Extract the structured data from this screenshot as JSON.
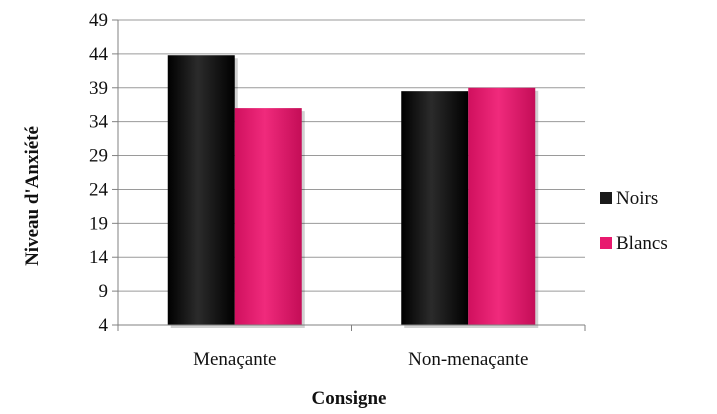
{
  "chart_data": {
    "type": "bar",
    "title": "",
    "xlabel": "Consigne",
    "ylabel": "Niveau d'Anxiété",
    "categories": [
      "Menaçante",
      "Non-menaçante"
    ],
    "series": [
      {
        "name": "Noirs",
        "values": [
          43.8,
          38.5
        ],
        "color": "#1a1a1a"
      },
      {
        "name": "Blancs",
        "values": [
          36.0,
          39.0
        ],
        "color": "#e8196e"
      }
    ],
    "ylim": [
      4,
      49
    ],
    "yticks": [
      "49",
      "44",
      "39",
      "34",
      "29",
      "24",
      "19",
      "14",
      "9",
      "4"
    ],
    "grid": true,
    "legend_position": "right"
  }
}
